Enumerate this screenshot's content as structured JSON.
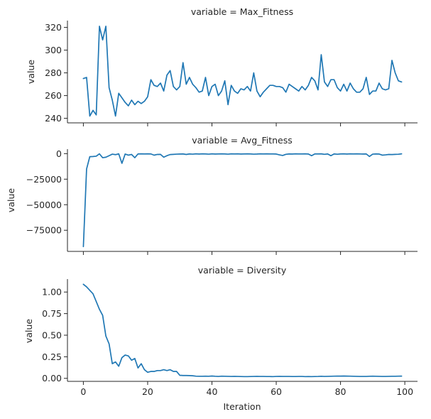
{
  "chart_data": [
    {
      "type": "line",
      "title": "variable = Max_Fitness",
      "xlabel": "",
      "ylabel": "value",
      "xlim": [
        -4.95,
        103.95
      ],
      "ylim": [
        236,
        326
      ],
      "xticks": [
        0,
        20,
        40,
        60,
        80,
        100
      ],
      "xtick_labels": [
        "",
        "",
        "",
        "",
        "",
        ""
      ],
      "yticks": [
        240,
        260,
        280,
        300,
        320
      ],
      "ytick_labels": [
        "240",
        "260",
        "280",
        "300",
        "320"
      ],
      "grid": false,
      "series": [
        {
          "color": "#1f77b4",
          "x": [
            0,
            1,
            2,
            3,
            4,
            5,
            6,
            7,
            8,
            9,
            10,
            11,
            12,
            13,
            14,
            15,
            16,
            17,
            18,
            19,
            20,
            21,
            22,
            23,
            24,
            25,
            26,
            27,
            28,
            29,
            30,
            31,
            32,
            33,
            34,
            35,
            36,
            37,
            38,
            39,
            40,
            41,
            42,
            43,
            44,
            45,
            46,
            47,
            48,
            49,
            50,
            51,
            52,
            53,
            54,
            55,
            56,
            57,
            58,
            59,
            60,
            61,
            62,
            63,
            64,
            65,
            66,
            67,
            68,
            69,
            70,
            71,
            72,
            73,
            74,
            75,
            76,
            77,
            78,
            79,
            80,
            81,
            82,
            83,
            84,
            85,
            86,
            87,
            88,
            89,
            90,
            91,
            92,
            93,
            94,
            95,
            96,
            97,
            98,
            99
          ],
          "y": [
            275,
            276,
            242,
            247,
            243,
            321,
            309,
            321,
            267,
            256,
            242,
            262,
            258,
            254,
            251,
            256,
            252,
            255,
            253,
            255,
            259,
            274,
            269,
            268,
            271,
            264,
            278,
            282,
            268,
            265,
            268,
            289,
            270,
            276,
            270,
            267,
            263,
            264,
            276,
            260,
            268,
            270,
            260,
            264,
            273,
            252,
            269,
            264,
            262,
            266,
            265,
            268,
            264,
            280,
            264,
            259,
            263,
            266,
            269,
            269,
            268,
            268,
            267,
            263,
            270,
            268,
            266,
            264,
            268,
            265,
            269,
            276,
            273,
            265,
            296,
            272,
            268,
            274,
            274,
            267,
            264,
            270,
            264,
            271,
            266,
            263,
            263,
            266,
            276,
            261,
            264,
            264,
            271,
            266,
            265,
            266,
            291,
            280,
            273,
            272
          ]
        }
      ]
    },
    {
      "type": "line",
      "title": "variable = Avg_Fitness",
      "xlabel": "",
      "ylabel": "value",
      "xlim": [
        -4.95,
        103.95
      ],
      "ylim": [
        -95700,
        4400
      ],
      "xticks": [
        0,
        20,
        40,
        60,
        80,
        100
      ],
      "xtick_labels": [
        "",
        "",
        "",
        "",
        "",
        ""
      ],
      "yticks": [
        -75000,
        -50000,
        -25000,
        0
      ],
      "ytick_labels": [
        "−75000",
        "−50000",
        "−25000",
        "0"
      ],
      "grid": false,
      "series": [
        {
          "color": "#1f77b4",
          "x": [
            0,
            1,
            2,
            3,
            4,
            5,
            6,
            7,
            8,
            9,
            10,
            11,
            12,
            13,
            14,
            15,
            16,
            17,
            18,
            19,
            20,
            21,
            22,
            23,
            24,
            25,
            26,
            27,
            28,
            29,
            30,
            31,
            32,
            33,
            34,
            35,
            36,
            37,
            38,
            39,
            40,
            41,
            42,
            43,
            44,
            45,
            46,
            47,
            48,
            49,
            50,
            51,
            52,
            53,
            54,
            55,
            56,
            57,
            58,
            59,
            60,
            61,
            62,
            63,
            64,
            65,
            66,
            67,
            68,
            69,
            70,
            71,
            72,
            73,
            74,
            75,
            76,
            77,
            78,
            79,
            80,
            81,
            82,
            83,
            84,
            85,
            86,
            87,
            88,
            89,
            90,
            91,
            92,
            93,
            94,
            95,
            96,
            97,
            98,
            99
          ],
          "y": [
            -91000,
            -15000,
            -3000,
            -2800,
            -2500,
            -200,
            -4000,
            -3500,
            -2000,
            -500,
            -1000,
            -200,
            -9500,
            -400,
            -1500,
            -800,
            -4000,
            -300,
            -200,
            -300,
            -200,
            -300,
            -1500,
            -800,
            -700,
            -3500,
            -2000,
            -900,
            -700,
            -500,
            -400,
            -300,
            -800,
            -300,
            -500,
            -200,
            -400,
            -200,
            -300,
            -500,
            -200,
            -400,
            -300,
            -200,
            -300,
            -500,
            -200,
            -300,
            -200,
            -400,
            -300,
            -200,
            -300,
            -500,
            -400,
            -200,
            -300,
            -200,
            -300,
            -300,
            -400,
            -1200,
            -1800,
            -700,
            -300,
            -400,
            -200,
            -300,
            -300,
            -200,
            -400,
            -2000,
            -300,
            -300,
            -200,
            -700,
            -300,
            -2000,
            -300,
            -600,
            -300,
            -200,
            -400,
            -200,
            -300,
            -200,
            -300,
            -400,
            -300,
            -2800,
            -500,
            -300,
            -400,
            -1500,
            -1200,
            -800,
            -900,
            -700,
            -600,
            -200
          ]
        }
      ]
    },
    {
      "type": "line",
      "title": "variable = Diversity",
      "xlabel": "Iteration",
      "ylabel": "value",
      "xlim": [
        -4.95,
        103.95
      ],
      "ylim": [
        -0.035,
        1.15
      ],
      "xticks": [
        0,
        20,
        40,
        60,
        80,
        100
      ],
      "xtick_labels": [
        "0",
        "20",
        "40",
        "60",
        "80",
        "100"
      ],
      "yticks": [
        0.0,
        0.25,
        0.5,
        0.75,
        1.0
      ],
      "ytick_labels": [
        "0.00",
        "0.25",
        "0.50",
        "0.75",
        "1.00"
      ],
      "grid": false,
      "series": [
        {
          "color": "#1f77b4",
          "x": [
            0,
            1,
            2,
            3,
            4,
            5,
            6,
            7,
            8,
            9,
            10,
            11,
            12,
            13,
            14,
            15,
            16,
            17,
            18,
            19,
            20,
            21,
            22,
            23,
            24,
            25,
            26,
            27,
            28,
            29,
            30,
            31,
            32,
            33,
            34,
            35,
            36,
            37,
            38,
            39,
            40,
            41,
            42,
            43,
            44,
            45,
            46,
            47,
            48,
            49,
            50,
            51,
            52,
            53,
            54,
            55,
            56,
            57,
            58,
            59,
            60,
            61,
            62,
            63,
            64,
            65,
            66,
            67,
            68,
            69,
            70,
            71,
            72,
            73,
            74,
            75,
            76,
            77,
            78,
            79,
            80,
            81,
            82,
            83,
            84,
            85,
            86,
            87,
            88,
            89,
            90,
            91,
            92,
            93,
            94,
            95,
            96,
            97,
            98,
            99
          ],
          "y": [
            1.09,
            1.06,
            1.02,
            0.98,
            0.89,
            0.8,
            0.73,
            0.49,
            0.4,
            0.17,
            0.19,
            0.14,
            0.24,
            0.27,
            0.26,
            0.21,
            0.23,
            0.12,
            0.17,
            0.1,
            0.07,
            0.08,
            0.08,
            0.09,
            0.09,
            0.1,
            0.09,
            0.1,
            0.08,
            0.08,
            0.035,
            0.033,
            0.033,
            0.032,
            0.03,
            0.025,
            0.024,
            0.024,
            0.025,
            0.024,
            0.027,
            0.024,
            0.022,
            0.025,
            0.024,
            0.023,
            0.022,
            0.023,
            0.022,
            0.021,
            0.02,
            0.02,
            0.021,
            0.022,
            0.023,
            0.022,
            0.022,
            0.021,
            0.021,
            0.02,
            0.022,
            0.023,
            0.022,
            0.022,
            0.022,
            0.021,
            0.021,
            0.022,
            0.022,
            0.02,
            0.021,
            0.02,
            0.021,
            0.022,
            0.024,
            0.022,
            0.023,
            0.024,
            0.025,
            0.026,
            0.026,
            0.027,
            0.026,
            0.025,
            0.024,
            0.023,
            0.022,
            0.022,
            0.022,
            0.024,
            0.025,
            0.024,
            0.023,
            0.022,
            0.022,
            0.023,
            0.024,
            0.024,
            0.025,
            0.026
          ]
        }
      ]
    }
  ]
}
